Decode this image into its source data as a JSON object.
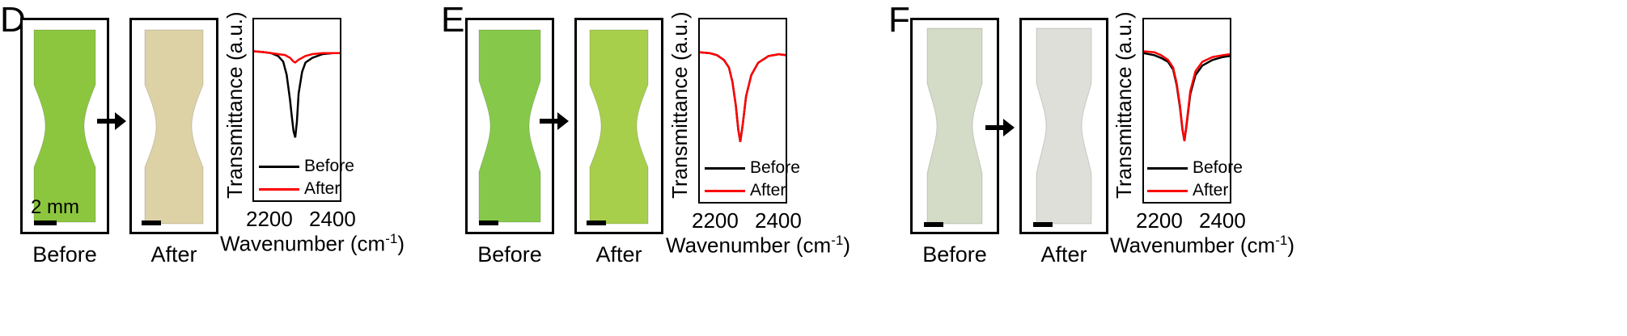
{
  "panels": [
    {
      "letter": "D",
      "before_label": "Before",
      "after_label": "After",
      "scale_label": "2 mm",
      "specimen_before_color": "#8cc63f",
      "specimen_after_color": "#ddd2a6",
      "chart_data": {
        "type": "line",
        "title": "",
        "xlabel": "Wavenumber (cm-1)",
        "ylabel": "Transmittance (a.u.)",
        "xlim": [
          2150,
          2400
        ],
        "xticks": [
          2200,
          2300,
          2400
        ],
        "legend_position": "bottom-right",
        "series": [
          {
            "name": "Before",
            "color": "#000000",
            "x": [
              2150,
              2180,
              2200,
              2220,
              2235,
              2245,
              2255,
              2260,
              2265,
              2270,
              2275,
              2280,
              2290,
              2300,
              2320,
              2350,
              2380,
              2400
            ],
            "y": [
              0.97,
              0.96,
              0.95,
              0.92,
              0.86,
              0.72,
              0.45,
              0.28,
              0.12,
              0.05,
              0.22,
              0.52,
              0.75,
              0.85,
              0.9,
              0.94,
              0.95,
              0.95
            ]
          },
          {
            "name": "After",
            "color": "#ff0000",
            "x": [
              2150,
              2180,
              2200,
              2220,
              2240,
              2255,
              2265,
              2270,
              2280,
              2300,
              2320,
              2350,
              2380,
              2400
            ],
            "y": [
              0.97,
              0.96,
              0.95,
              0.94,
              0.93,
              0.9,
              0.86,
              0.85,
              0.88,
              0.92,
              0.94,
              0.95,
              0.95,
              0.95
            ]
          }
        ]
      }
    },
    {
      "letter": "E",
      "before_label": "Before",
      "after_label": "After",
      "scale_label": "",
      "specimen_before_color": "#86c94a",
      "specimen_after_color": "#a8cf4c",
      "chart_data": {
        "type": "line",
        "title": "",
        "xlabel": "Wavenumber (cm-1)",
        "ylabel": "Transmittance (a.u.)",
        "xlim": [
          2150,
          2400
        ],
        "xticks": [
          2200,
          2300,
          2400
        ],
        "legend_position": "bottom-right",
        "series": [
          {
            "name": "Before",
            "color": "#000000",
            "x": [
              2150,
              2180,
              2200,
              2220,
              2235,
              2245,
              2255,
              2262,
              2268,
              2275,
              2285,
              2300,
              2320,
              2350,
              2380,
              2400
            ],
            "y": [
              0.96,
              0.95,
              0.93,
              0.88,
              0.8,
              0.65,
              0.4,
              0.15,
              0.02,
              0.2,
              0.5,
              0.72,
              0.85,
              0.92,
              0.94,
              0.93
            ]
          },
          {
            "name": "After",
            "color": "#ff0000",
            "x": [
              2150,
              2180,
              2200,
              2220,
              2235,
              2245,
              2255,
              2262,
              2268,
              2275,
              2285,
              2300,
              2320,
              2350,
              2380,
              2400
            ],
            "y": [
              0.96,
              0.95,
              0.93,
              0.88,
              0.8,
              0.65,
              0.4,
              0.15,
              0.02,
              0.2,
              0.5,
              0.72,
              0.85,
              0.92,
              0.94,
              0.93
            ]
          }
        ]
      }
    },
    {
      "letter": "F",
      "before_label": "Before",
      "after_label": "After",
      "scale_label": "",
      "specimen_before_color": "#d4dbc6",
      "specimen_after_color": "#dedfd8",
      "chart_data": {
        "type": "line",
        "title": "",
        "xlabel": "Wavenumber (cm-1)",
        "ylabel": "Transmittance (a.u.)",
        "xlim": [
          2150,
          2400
        ],
        "xticks": [
          2200,
          2300,
          2400
        ],
        "legend_position": "bottom-right",
        "series": [
          {
            "name": "Before",
            "color": "#000000",
            "x": [
              2150,
              2180,
              2200,
              2220,
              2235,
              2245,
              2255,
              2262,
              2268,
              2275,
              2285,
              2300,
              2320,
              2350,
              2380,
              2400
            ],
            "y": [
              0.95,
              0.93,
              0.9,
              0.86,
              0.78,
              0.62,
              0.38,
              0.15,
              0.03,
              0.22,
              0.52,
              0.72,
              0.82,
              0.88,
              0.91,
              0.92
            ]
          },
          {
            "name": "After",
            "color": "#ff0000",
            "x": [
              2150,
              2180,
              2200,
              2220,
              2235,
              2245,
              2255,
              2262,
              2268,
              2275,
              2285,
              2300,
              2320,
              2350,
              2380,
              2400
            ],
            "y": [
              0.97,
              0.96,
              0.93,
              0.88,
              0.8,
              0.64,
              0.4,
              0.16,
              0.03,
              0.24,
              0.55,
              0.76,
              0.86,
              0.91,
              0.93,
              0.94
            ]
          }
        ]
      }
    }
  ]
}
